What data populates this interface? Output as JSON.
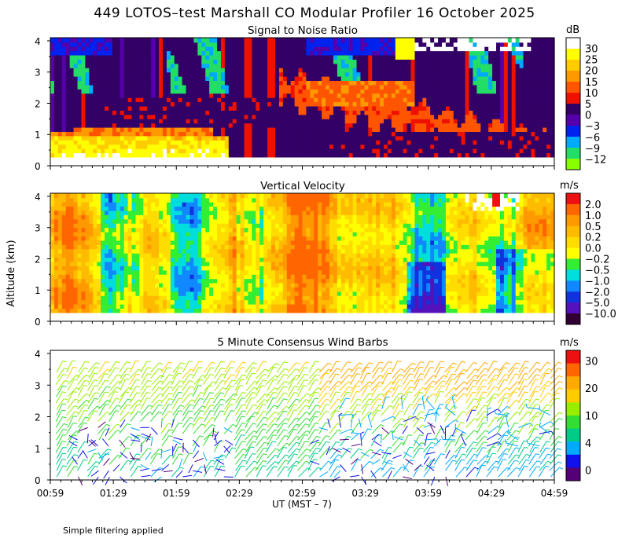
{
  "title": "449 LOTOS–test Marshall CO Modular Profiler 16 October 2025",
  "ylabel": "Altitude (km)",
  "xlabel": "UT  (MST – 7)",
  "footer_note": "Simple filtering applied",
  "x_ticks": [
    "00:59",
    "01:29",
    "01:59",
    "02:29",
    "02:59",
    "03:29",
    "03:59",
    "04:29",
    "04:59"
  ],
  "y_ticks": [
    "0",
    "1",
    "2",
    "3",
    "4"
  ],
  "chart_data": [
    {
      "type": "heatmap",
      "title": "Signal to Noise Ratio",
      "ylim": [
        0,
        4.1
      ],
      "x_range": [
        "00:59",
        "04:59"
      ],
      "colorbar": {
        "unit": "dB",
        "labels": [
          "30",
          "25",
          "20",
          "15",
          "10",
          "5",
          "0",
          "−3",
          "−6",
          "−9",
          "−12"
        ],
        "colors": [
          "#ffffff",
          "#ffff00",
          "#ffcc00",
          "#ff9900",
          "#ff5500",
          "#ee1100",
          "#330066",
          "#5500aa",
          "#0022ee",
          "#00aaff",
          "#22dd66",
          "#88ff00"
        ]
      }
    },
    {
      "type": "heatmap",
      "title": "Vertical Velocity",
      "ylim": [
        0,
        4.1
      ],
      "x_range": [
        "00:59",
        "04:59"
      ],
      "colorbar": {
        "unit": "m/s",
        "labels": [
          "2.0",
          "1.0",
          "0.5",
          "0.2",
          "0.0",
          "−0.2",
          "−0.5",
          "−1.0",
          "−2.0",
          "−5.0",
          "−10.0"
        ],
        "colors": [
          "#ee1111",
          "#ff6600",
          "#ff9900",
          "#ffbb00",
          "#ffdd00",
          "#ffff00",
          "#33ee33",
          "#00dddd",
          "#1188ff",
          "#1133dd",
          "#5511bb",
          "#330033"
        ]
      }
    },
    {
      "type": "scatter",
      "title": "5 Minute Consensus Wind Barbs",
      "ylim": [
        0,
        4.1
      ],
      "x_range": [
        "00:59",
        "04:59"
      ],
      "colorbar": {
        "unit": "m/s",
        "labels": [
          "30",
          "20",
          "10",
          "4",
          "0"
        ],
        "colors": [
          "#ee1111",
          "#ff6600",
          "#ffaa00",
          "#ffcc00",
          "#99ee00",
          "#33dd33",
          "#00cc88",
          "#00aaff",
          "#1111ee",
          "#550077"
        ]
      }
    }
  ]
}
